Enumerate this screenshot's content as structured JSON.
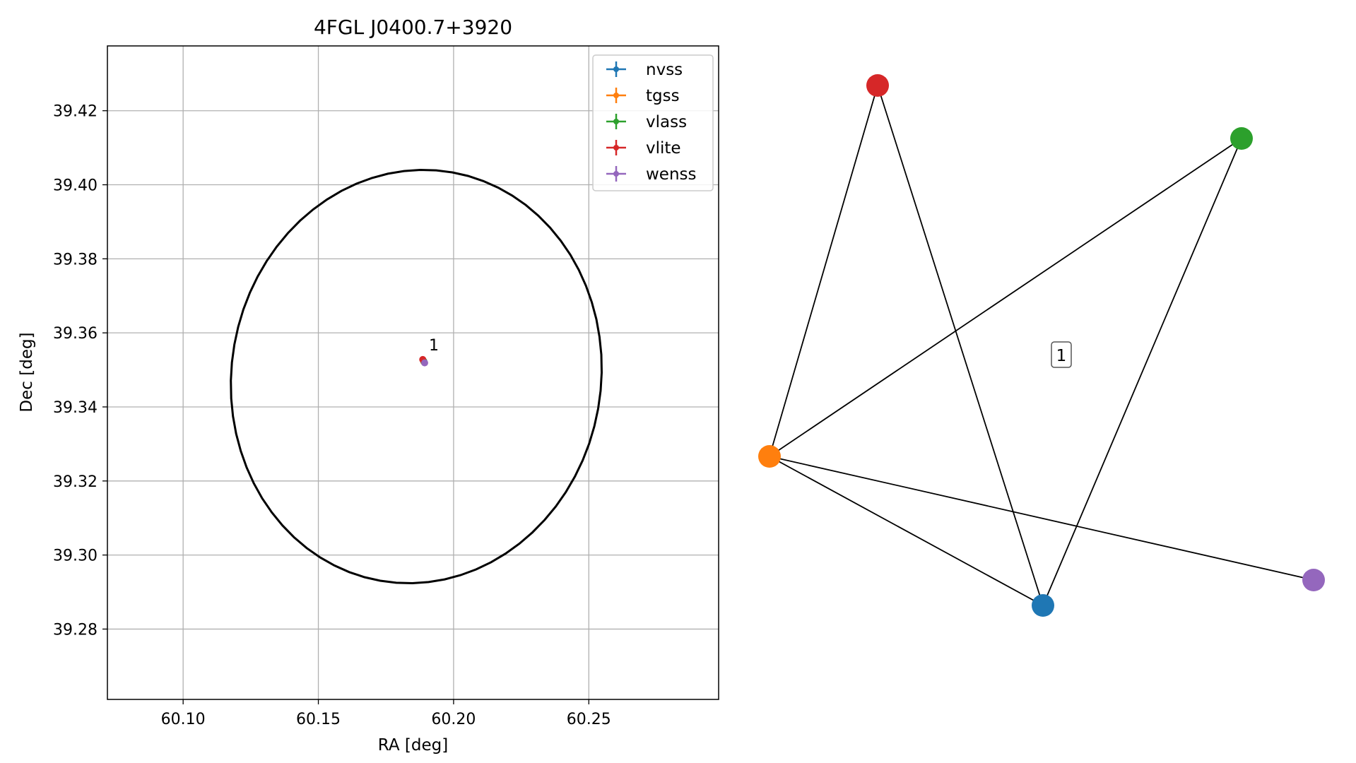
{
  "chart_data": [
    {
      "type": "scatter",
      "title": "4FGL J0400.7+3920",
      "xlabel": "RA [deg]",
      "ylabel": "Dec [deg]",
      "xlim": [
        60.072,
        60.298
      ],
      "ylim": [
        39.261,
        39.4375
      ],
      "x_ticks": [
        60.1,
        60.15,
        60.2,
        60.25
      ],
      "x_tick_labels": [
        "60.10",
        "60.15",
        "60.20",
        "60.25"
      ],
      "y_ticks": [
        39.28,
        39.3,
        39.32,
        39.34,
        39.36,
        39.38,
        39.4,
        39.42
      ],
      "y_tick_labels": [
        "39.28",
        "39.30",
        "39.32",
        "39.34",
        "39.36",
        "39.38",
        "39.40",
        "39.42"
      ],
      "grid": true,
      "legend_position": "top-right",
      "series": [
        {
          "name": "nvss",
          "color": "#1f77b4",
          "points": [
            {
              "ra": 60.189,
              "dec": 39.3523
            }
          ]
        },
        {
          "name": "tgss",
          "color": "#ff7f0e",
          "points": [
            {
              "ra": 60.189,
              "dec": 39.3522
            }
          ]
        },
        {
          "name": "vlass",
          "color": "#2ca02c",
          "points": [
            {
              "ra": 60.189,
              "dec": 39.3523
            }
          ]
        },
        {
          "name": "vlite",
          "color": "#d62728",
          "points": [
            {
              "ra": 60.1886,
              "dec": 39.3528
            }
          ]
        },
        {
          "name": "wenss",
          "color": "#9467bd",
          "points": [
            {
              "ra": 60.1893,
              "dec": 39.3519
            }
          ]
        }
      ],
      "ellipse": {
        "center_ra": 60.1862,
        "center_dec": 39.3482,
        "semi_ra": 0.0683,
        "semi_dec": 0.056,
        "tilt_deg": 10,
        "color": "#000000"
      },
      "annotations": [
        {
          "text": "1",
          "ra": 60.1893,
          "dec": 39.3545
        }
      ]
    },
    {
      "type": "network",
      "nodes": [
        {
          "id": "vlite",
          "color": "#d62728"
        },
        {
          "id": "vlass",
          "color": "#2ca02c"
        },
        {
          "id": "tgss",
          "color": "#ff7f0e"
        },
        {
          "id": "nvss",
          "color": "#1f77b4"
        },
        {
          "id": "wenss",
          "color": "#9467bd"
        }
      ],
      "edges": [
        [
          "tgss",
          "vlite"
        ],
        [
          "vlite",
          "nvss"
        ],
        [
          "tgss",
          "vlass"
        ],
        [
          "vlass",
          "nvss"
        ],
        [
          "tgss",
          "nvss"
        ],
        [
          "tgss",
          "wenss"
        ]
      ],
      "label": "1"
    }
  ]
}
